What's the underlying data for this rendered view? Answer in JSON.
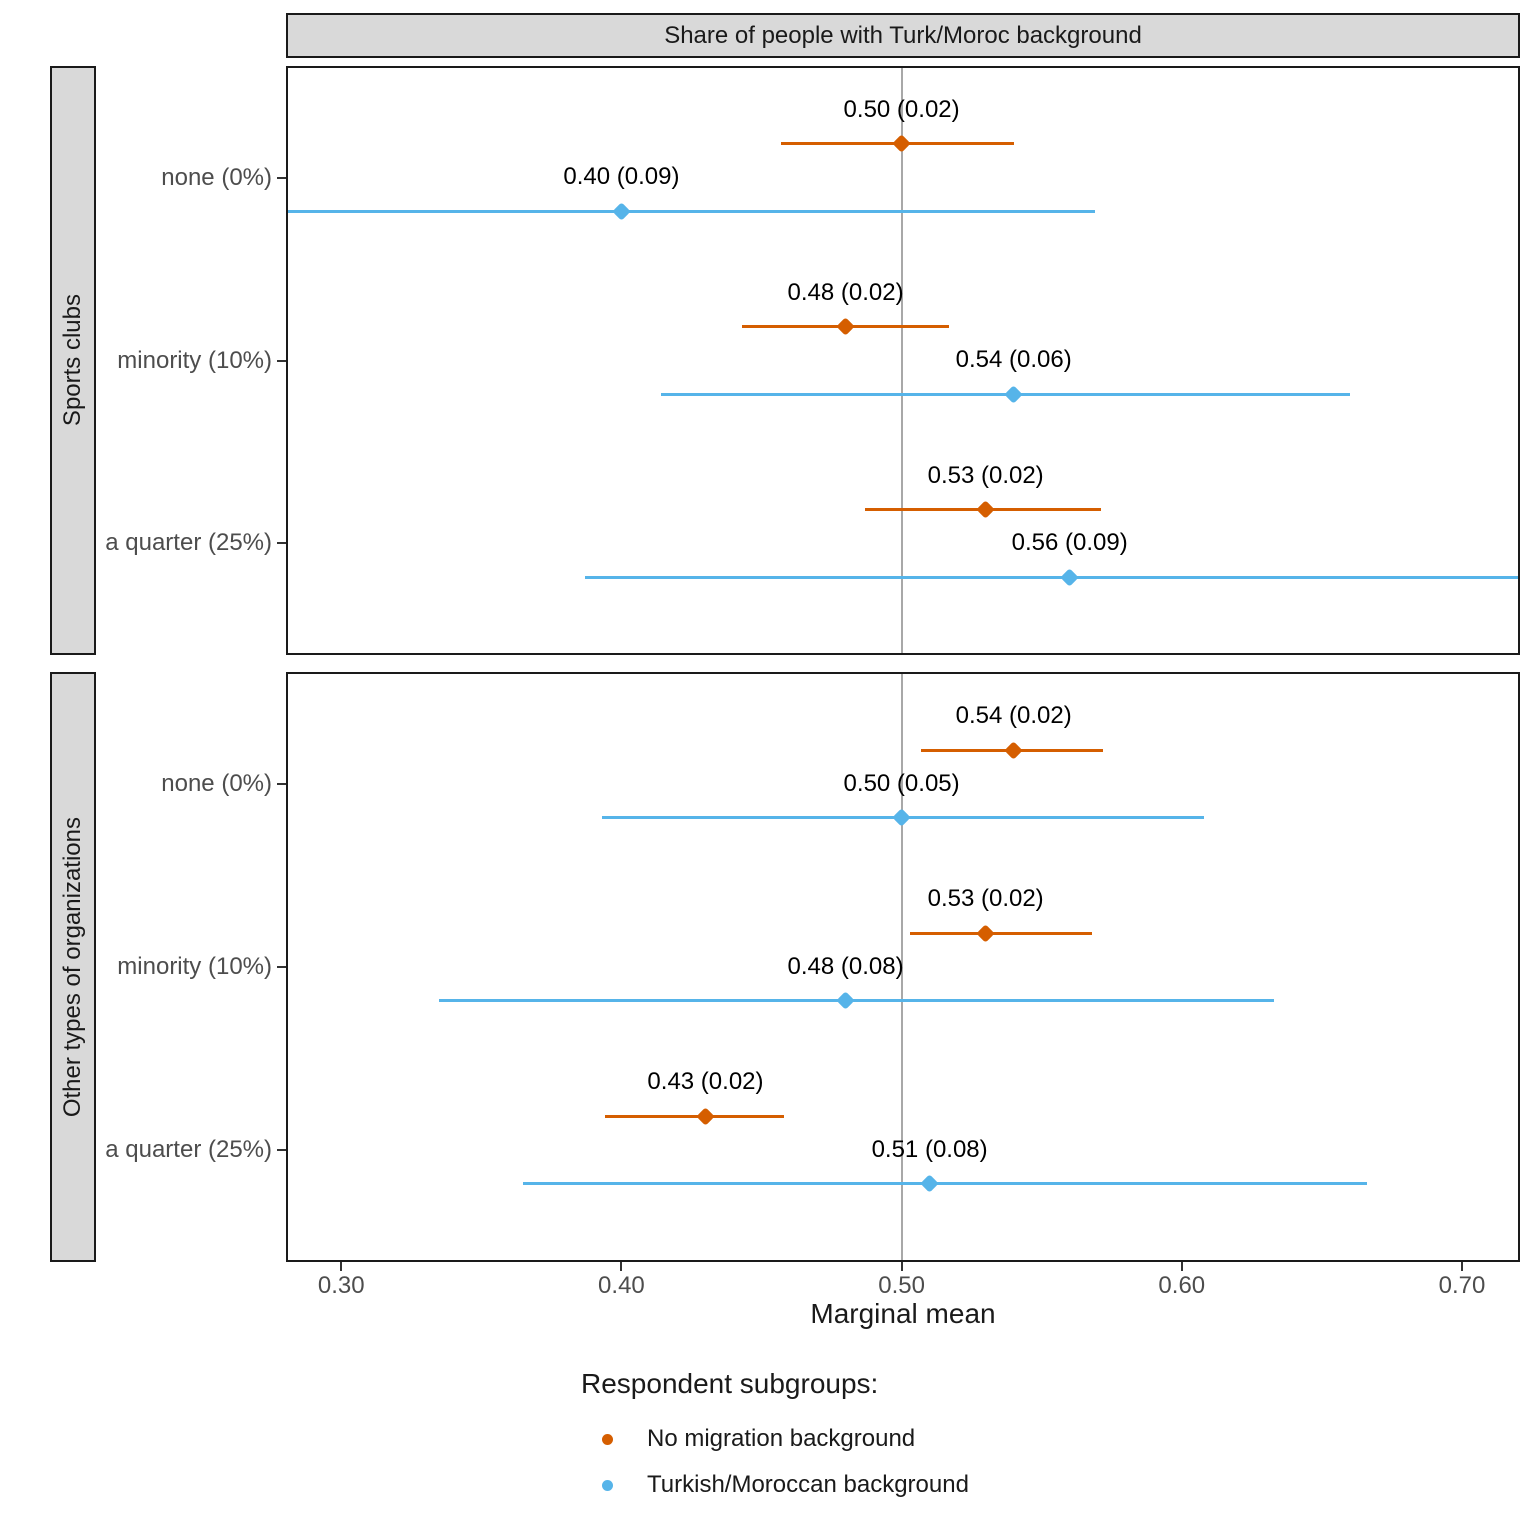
{
  "chart_data": {
    "type": "scatter",
    "subtype": "pointrange-dotplot",
    "facet_column_title": "Share of people with Turk/Moroc background",
    "xlabel": "Marginal mean",
    "x_domain": [
      0.281,
      0.72
    ],
    "x_ticks": [
      0.3,
      0.4,
      0.5,
      0.6,
      0.7
    ],
    "x_tick_labels": [
      "0.30",
      "0.40",
      "0.50",
      "0.60",
      "0.70"
    ],
    "reference_line_x": 0.5,
    "grid": "off",
    "categories": [
      "none (0%)",
      "minority (10%)",
      "a quarter (25%)"
    ],
    "legend_title": "Respondent subgroups:",
    "legend_position": "bottom-left",
    "series_info": [
      {
        "name": "No migration background",
        "color": "#D55E00"
      },
      {
        "name": "Turkish/Moroccan background",
        "color": "#56B4E9"
      }
    ],
    "colors": {
      "no_migration": "#D55E00",
      "turkish_moroccan": "#56B4E9",
      "reference_line": "#A8A8A8",
      "strip_background": "#D9D9D9",
      "axis_text": "#4D4D4D"
    },
    "panels": [
      {
        "facet_label": "Sports clubs",
        "points": [
          {
            "category": "none (0%)",
            "series": "No migration background",
            "mean": 0.5,
            "se": 0.02,
            "label": "0.50 (0.02)",
            "ci": [
              0.457,
              0.54
            ]
          },
          {
            "category": "none (0%)",
            "series": "Turkish/Moroccan background",
            "mean": 0.4,
            "se": 0.09,
            "label": "0.40 (0.09)",
            "ci": [
              0.231,
              0.569
            ]
          },
          {
            "category": "minority (10%)",
            "series": "No migration background",
            "mean": 0.48,
            "se": 0.02,
            "label": "0.48 (0.02)",
            "ci": [
              0.443,
              0.517
            ]
          },
          {
            "category": "minority (10%)",
            "series": "Turkish/Moroccan background",
            "mean": 0.54,
            "se": 0.06,
            "label": "0.54 (0.06)",
            "ci": [
              0.414,
              0.66
            ]
          },
          {
            "category": "a quarter (25%)",
            "series": "No migration background",
            "mean": 0.53,
            "se": 0.02,
            "label": "0.53 (0.02)",
            "ci": [
              0.487,
              0.571
            ]
          },
          {
            "category": "a quarter (25%)",
            "series": "Turkish/Moroccan background",
            "mean": 0.56,
            "se": 0.09,
            "label": "0.56 (0.09)",
            "ci": [
              0.387,
              0.733
            ]
          }
        ]
      },
      {
        "facet_label": "Other types of organizations",
        "points": [
          {
            "category": "none (0%)",
            "series": "No migration background",
            "mean": 0.54,
            "se": 0.02,
            "label": "0.54 (0.02)",
            "ci": [
              0.507,
              0.572
            ]
          },
          {
            "category": "none (0%)",
            "series": "Turkish/Moroccan background",
            "mean": 0.5,
            "se": 0.05,
            "label": "0.50 (0.05)",
            "ci": [
              0.393,
              0.608
            ]
          },
          {
            "category": "minority (10%)",
            "series": "No migration background",
            "mean": 0.53,
            "se": 0.02,
            "label": "0.53 (0.02)",
            "ci": [
              0.503,
              0.568
            ]
          },
          {
            "category": "minority (10%)",
            "series": "Turkish/Moroccan background",
            "mean": 0.48,
            "se": 0.08,
            "label": "0.48 (0.08)",
            "ci": [
              0.335,
              0.633
            ]
          },
          {
            "category": "a quarter (25%)",
            "series": "No migration background",
            "mean": 0.43,
            "se": 0.02,
            "label": "0.43 (0.02)",
            "ci": [
              0.394,
              0.458
            ]
          },
          {
            "category": "a quarter (25%)",
            "series": "Turkish/Moroccan background",
            "mean": 0.51,
            "se": 0.08,
            "label": "0.51 (0.08)",
            "ci": [
              0.365,
              0.666
            ]
          }
        ]
      }
    ]
  }
}
